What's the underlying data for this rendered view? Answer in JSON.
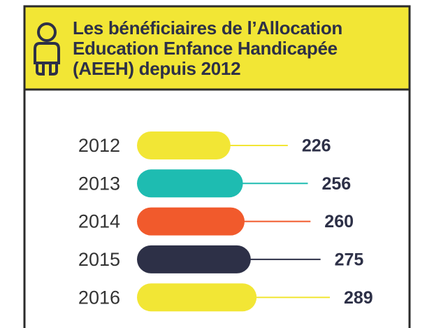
{
  "chart_data": {
    "type": "bar",
    "orientation": "horizontal",
    "title": "Les bénéficiaires de l’Allocation Education Enfance Handicapée (AEEH) depuis 2012",
    "categories": [
      "2012",
      "2013",
      "2014",
      "2015",
      "2016"
    ],
    "values": [
      226,
      256,
      260,
      275,
      289
    ],
    "colors": [
      "#f2e635",
      "#1ebcb1",
      "#f15a2c",
      "#2d3047",
      "#f2e635"
    ]
  }
}
